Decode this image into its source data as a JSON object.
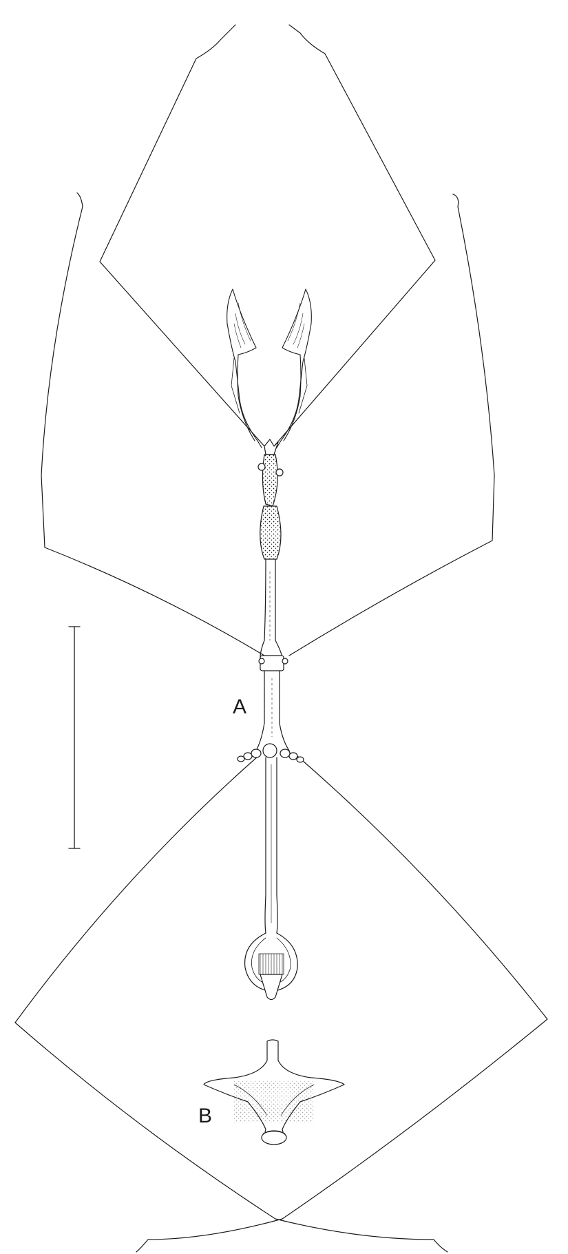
{
  "figure": {
    "label_a": "A",
    "label_b": "B"
  },
  "colors": {
    "background": "#ffffff",
    "ink": "#1a1a1a"
  }
}
